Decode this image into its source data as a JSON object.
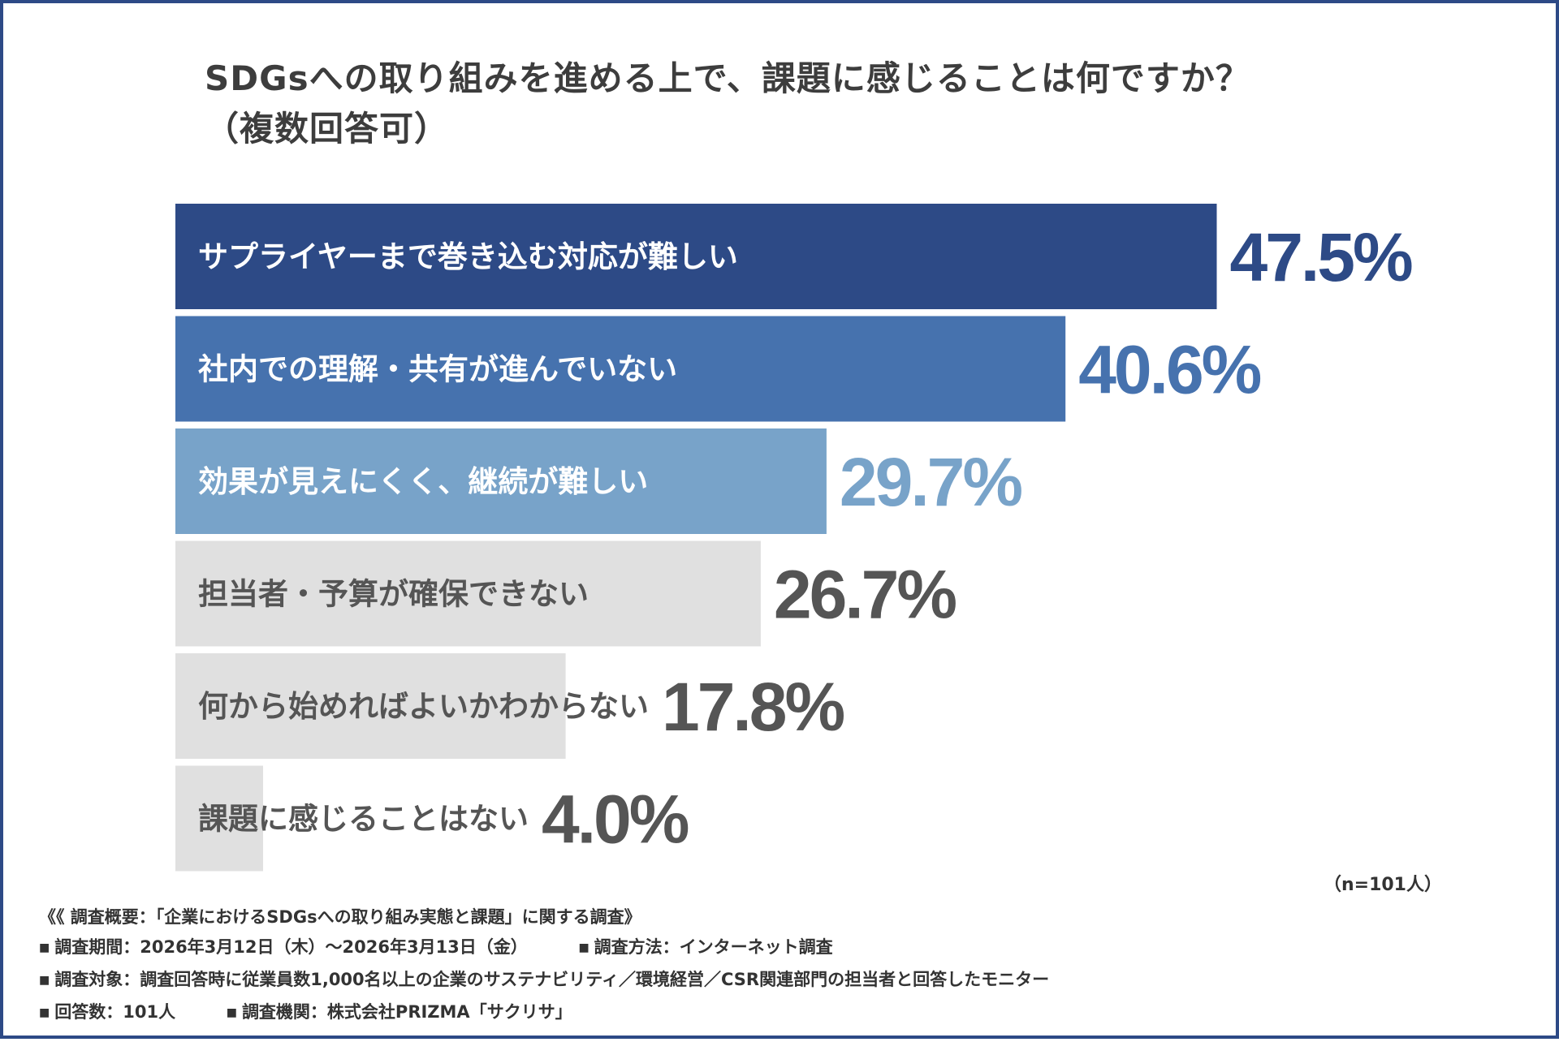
{
  "title_line1": "SDGsへの取り組みを進める上で、課題に感じることは何ですか？",
  "title_line2": "（複数回答可）",
  "n_label": "（n=101人）",
  "colors": [
    "#2d4a86",
    "#4672ae",
    "#78a3c9",
    "#e0e0e0",
    "#e0e0e0",
    "#e0e0e0"
  ],
  "label_colors": [
    "#ffffff",
    "#ffffff",
    "#ffffff",
    "#555555",
    "#555555",
    "#555555"
  ],
  "value_colors": [
    "#2d4a86",
    "#4672ae",
    "#78a3c9",
    "#555555",
    "#555555",
    "#555555"
  ],
  "chart_data": {
    "type": "bar",
    "orientation": "horizontal",
    "categories": [
      "サプライヤーまで巻き込む対応が難しい",
      "社内での理解・共有が進んでいない",
      "効果が見えにくく、継続が難しい",
      "担当者・予算が確保できない",
      "何から始めればよいかわからない",
      "課題に感じることはない"
    ],
    "values": [
      47.5,
      40.6,
      29.7,
      26.7,
      17.8,
      4.0
    ],
    "value_labels": [
      "47.5%",
      "40.6%",
      "29.7%",
      "26.7%",
      "17.8%",
      "4.0%"
    ],
    "title": "SDGsへの取り組みを進める上で、課題に感じることは何ですか？（複数回答可）"
  },
  "survey": {
    "overview": "《 調査概要：「企業におけるSDGsへの取り組み実態と課題」に関する調査》",
    "period": "調査期間：2026年3月12日（木）～2026年3月13日（金）",
    "method": "調査方法：インターネット調査",
    "target": "調査対象：調査回答時に従業員数1,000名以上の企業のサステナビリティ／環境経営／CSR関連部門の担当者と回答したモニター",
    "count": "回答数：101人",
    "org": "調査機関：株式会社PRIZMA「サクリサ」",
    "bullet": "■"
  }
}
